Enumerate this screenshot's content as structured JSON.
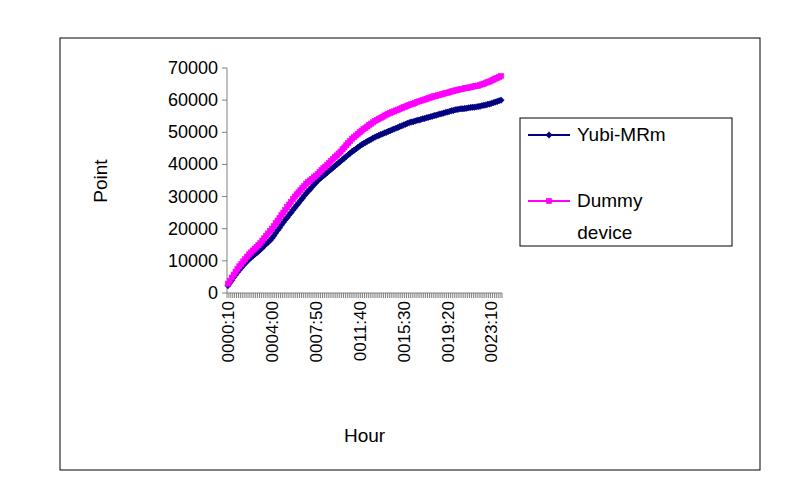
{
  "chart_data": {
    "type": "line",
    "x_label": "Hour",
    "y_label": "Point",
    "categories": [
      "0000:10",
      null,
      null,
      null,
      null,
      null,
      null,
      null,
      null,
      null,
      null,
      null,
      null,
      null,
      null,
      null,
      null,
      null,
      null,
      null,
      null,
      null,
      null,
      "0004:00",
      null,
      null,
      null,
      null,
      null,
      null,
      null,
      null,
      null,
      null,
      null,
      null,
      null,
      null,
      null,
      null,
      null,
      null,
      null,
      null,
      null,
      null,
      "0007:50",
      null,
      null,
      null,
      null,
      null,
      null,
      null,
      null,
      null,
      null,
      null,
      null,
      null,
      null,
      null,
      null,
      null,
      null,
      null,
      null,
      null,
      null,
      "0011:40",
      null,
      null,
      null,
      null,
      null,
      null,
      null,
      null,
      null,
      null,
      null,
      null,
      null,
      null,
      null,
      null,
      null,
      null,
      null,
      null,
      null,
      null,
      "0015:30",
      null,
      null,
      null,
      null,
      null,
      null,
      null,
      null,
      null,
      null,
      null,
      null,
      null,
      null,
      null,
      null,
      null,
      null,
      null,
      null,
      null,
      null,
      "0019:20",
      null,
      null,
      null,
      null,
      null,
      null,
      null,
      null,
      null,
      null,
      null,
      null,
      null,
      null,
      null,
      null,
      null,
      null,
      null,
      null,
      null,
      null,
      "0023:10",
      null,
      null,
      null,
      null,
      null
    ],
    "series": [
      {
        "name": "Yubi-MRm",
        "color": "#000080",
        "marker": "diamond",
        "values": [
          2300,
          3200,
          4000,
          4900,
          5700,
          6500,
          7200,
          7900,
          8600,
          9300,
          9900,
          10500,
          11000,
          11500,
          12000,
          12500,
          13000,
          13500,
          14100,
          14700,
          15300,
          15800,
          16400,
          17000,
          17800,
          18700,
          19500,
          20300,
          21200,
          22000,
          22800,
          23500,
          24300,
          25000,
          25800,
          26500,
          27300,
          28000,
          28800,
          29500,
          30300,
          31000,
          31700,
          32300,
          33000,
          33700,
          34300,
          35000,
          35500,
          36000,
          36500,
          37000,
          37500,
          38000,
          38500,
          39000,
          39500,
          40000,
          40500,
          41000,
          41500,
          42000,
          42500,
          43000,
          43500,
          44000,
          44400,
          44800,
          45300,
          45700,
          46100,
          46500,
          46800,
          47200,
          47500,
          47800,
          48200,
          48500,
          48800,
          49000,
          49300,
          49500,
          49800,
          50000,
          50300,
          50500,
          50800,
          51000,
          51300,
          51500,
          51800,
          52000,
          52300,
          52500,
          52800,
          53000,
          53200,
          53300,
          53500,
          53700,
          53800,
          54000,
          54200,
          54300,
          54500,
          54700,
          54800,
          55000,
          55200,
          55300,
          55500,
          55700,
          55800,
          56000,
          56200,
          56300,
          56500,
          56700,
          56800,
          57000,
          57100,
          57200,
          57300,
          57300,
          57400,
          57500,
          57600,
          57700,
          57800,
          57800,
          57900,
          58000,
          58100,
          58300,
          58400,
          58500,
          58700,
          58800,
          59000,
          59200,
          59400,
          59600,
          59800,
          60000
        ]
      },
      {
        "name": "Dummy device",
        "color": "#ff00ff",
        "marker": "square",
        "values": [
          2900,
          3800,
          4800,
          5700,
          6600,
          7500,
          8300,
          9000,
          9800,
          10500,
          11300,
          12000,
          12600,
          13200,
          13800,
          14300,
          14900,
          15500,
          16300,
          17000,
          17800,
          18500,
          19300,
          20000,
          20800,
          21700,
          22500,
          23300,
          24200,
          25000,
          25800,
          26700,
          27500,
          28300,
          29200,
          30000,
          30700,
          31300,
          32000,
          32700,
          33300,
          34000,
          34500,
          35000,
          35500,
          36000,
          36500,
          37000,
          37600,
          38200,
          38800,
          39300,
          39900,
          40500,
          41100,
          41700,
          42300,
          42800,
          43400,
          44000,
          44700,
          45300,
          46000,
          46700,
          47300,
          48000,
          48500,
          49000,
          49500,
          50000,
          50500,
          51000,
          51400,
          51800,
          52300,
          52700,
          53100,
          53500,
          53800,
          54200,
          54500,
          54800,
          55200,
          55500,
          55800,
          56000,
          56300,
          56500,
          56800,
          57000,
          57300,
          57500,
          57800,
          58000,
          58300,
          58500,
          58700,
          58900,
          59100,
          59400,
          59600,
          59800,
          60000,
          60200,
          60400,
          60600,
          60800,
          61000,
          61200,
          61300,
          61500,
          61700,
          61800,
          62000,
          62200,
          62300,
          62500,
          62700,
          62800,
          63000,
          63100,
          63300,
          63400,
          63500,
          63700,
          63800,
          63900,
          64000,
          64200,
          64300,
          64400,
          64500,
          64700,
          64900,
          65100,
          65400,
          65600,
          65800,
          66100,
          66400,
          66700,
          66900,
          67200,
          67500
        ]
      }
    ],
    "ylim": [
      0,
      70000
    ],
    "yticks": [
      0,
      10000,
      20000,
      30000,
      40000,
      50000,
      60000,
      70000
    ],
    "grid": false,
    "legend": "right"
  }
}
